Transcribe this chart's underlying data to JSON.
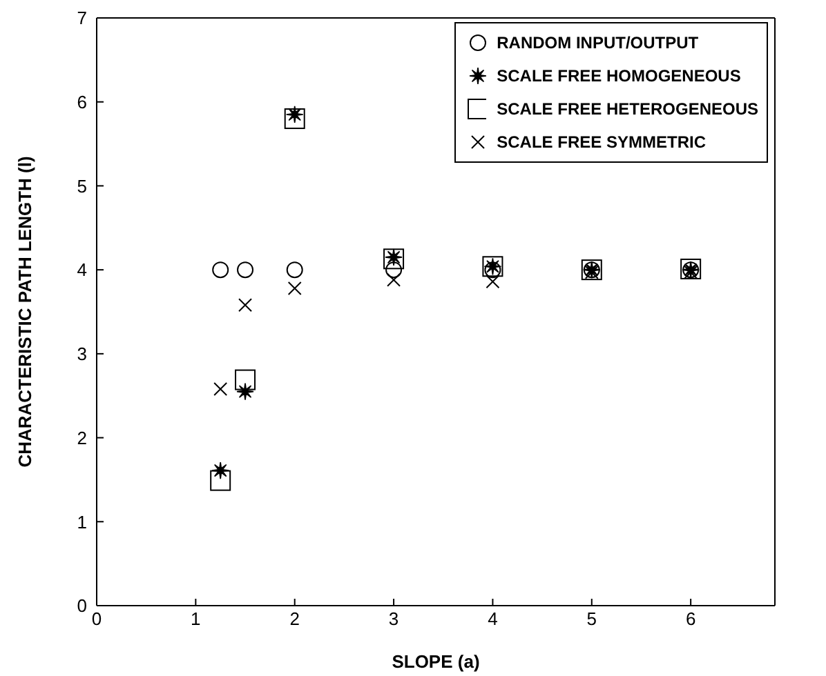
{
  "chart_data": {
    "type": "scatter",
    "xlabel": "SLOPE (a)",
    "ylabel": "CHARACTERISTIC PATH LENGTH (l)",
    "x": [
      1.25,
      1.5,
      2,
      3,
      4,
      5,
      6
    ],
    "xlim": [
      0,
      6.85
    ],
    "xticks": [
      0,
      1,
      2,
      3,
      4,
      5,
      6
    ],
    "ylim": [
      0,
      7
    ],
    "yticks": [
      0,
      1,
      2,
      3,
      4,
      5,
      6,
      7
    ],
    "grid": false,
    "legend": "top right",
    "series": [
      {
        "name": "RANDOM INPUT/OUTPUT",
        "color": "#000000",
        "marker": "circle",
        "values": [
          4.0,
          4.0,
          4.0,
          4.0,
          4.0,
          4.0,
          4.0
        ]
      },
      {
        "name": "SCALE FREE HOMOGENEOUS",
        "color": "#000000",
        "marker": "star",
        "values": [
          1.61,
          2.55,
          5.85,
          4.15,
          4.04,
          4.0,
          4.0
        ]
      },
      {
        "name": "SCALE FREE HETEROGENEOUS",
        "color": "#000000",
        "marker": "square",
        "values": [
          1.49,
          2.69,
          5.8,
          4.13,
          4.04,
          4.0,
          4.01
        ]
      },
      {
        "name": "SCALE FREE SYMMETRIC",
        "color": "#000000",
        "marker": "cross",
        "values": [
          2.58,
          3.58,
          3.78,
          3.88,
          3.86,
          3.97,
          3.97
        ]
      }
    ]
  }
}
